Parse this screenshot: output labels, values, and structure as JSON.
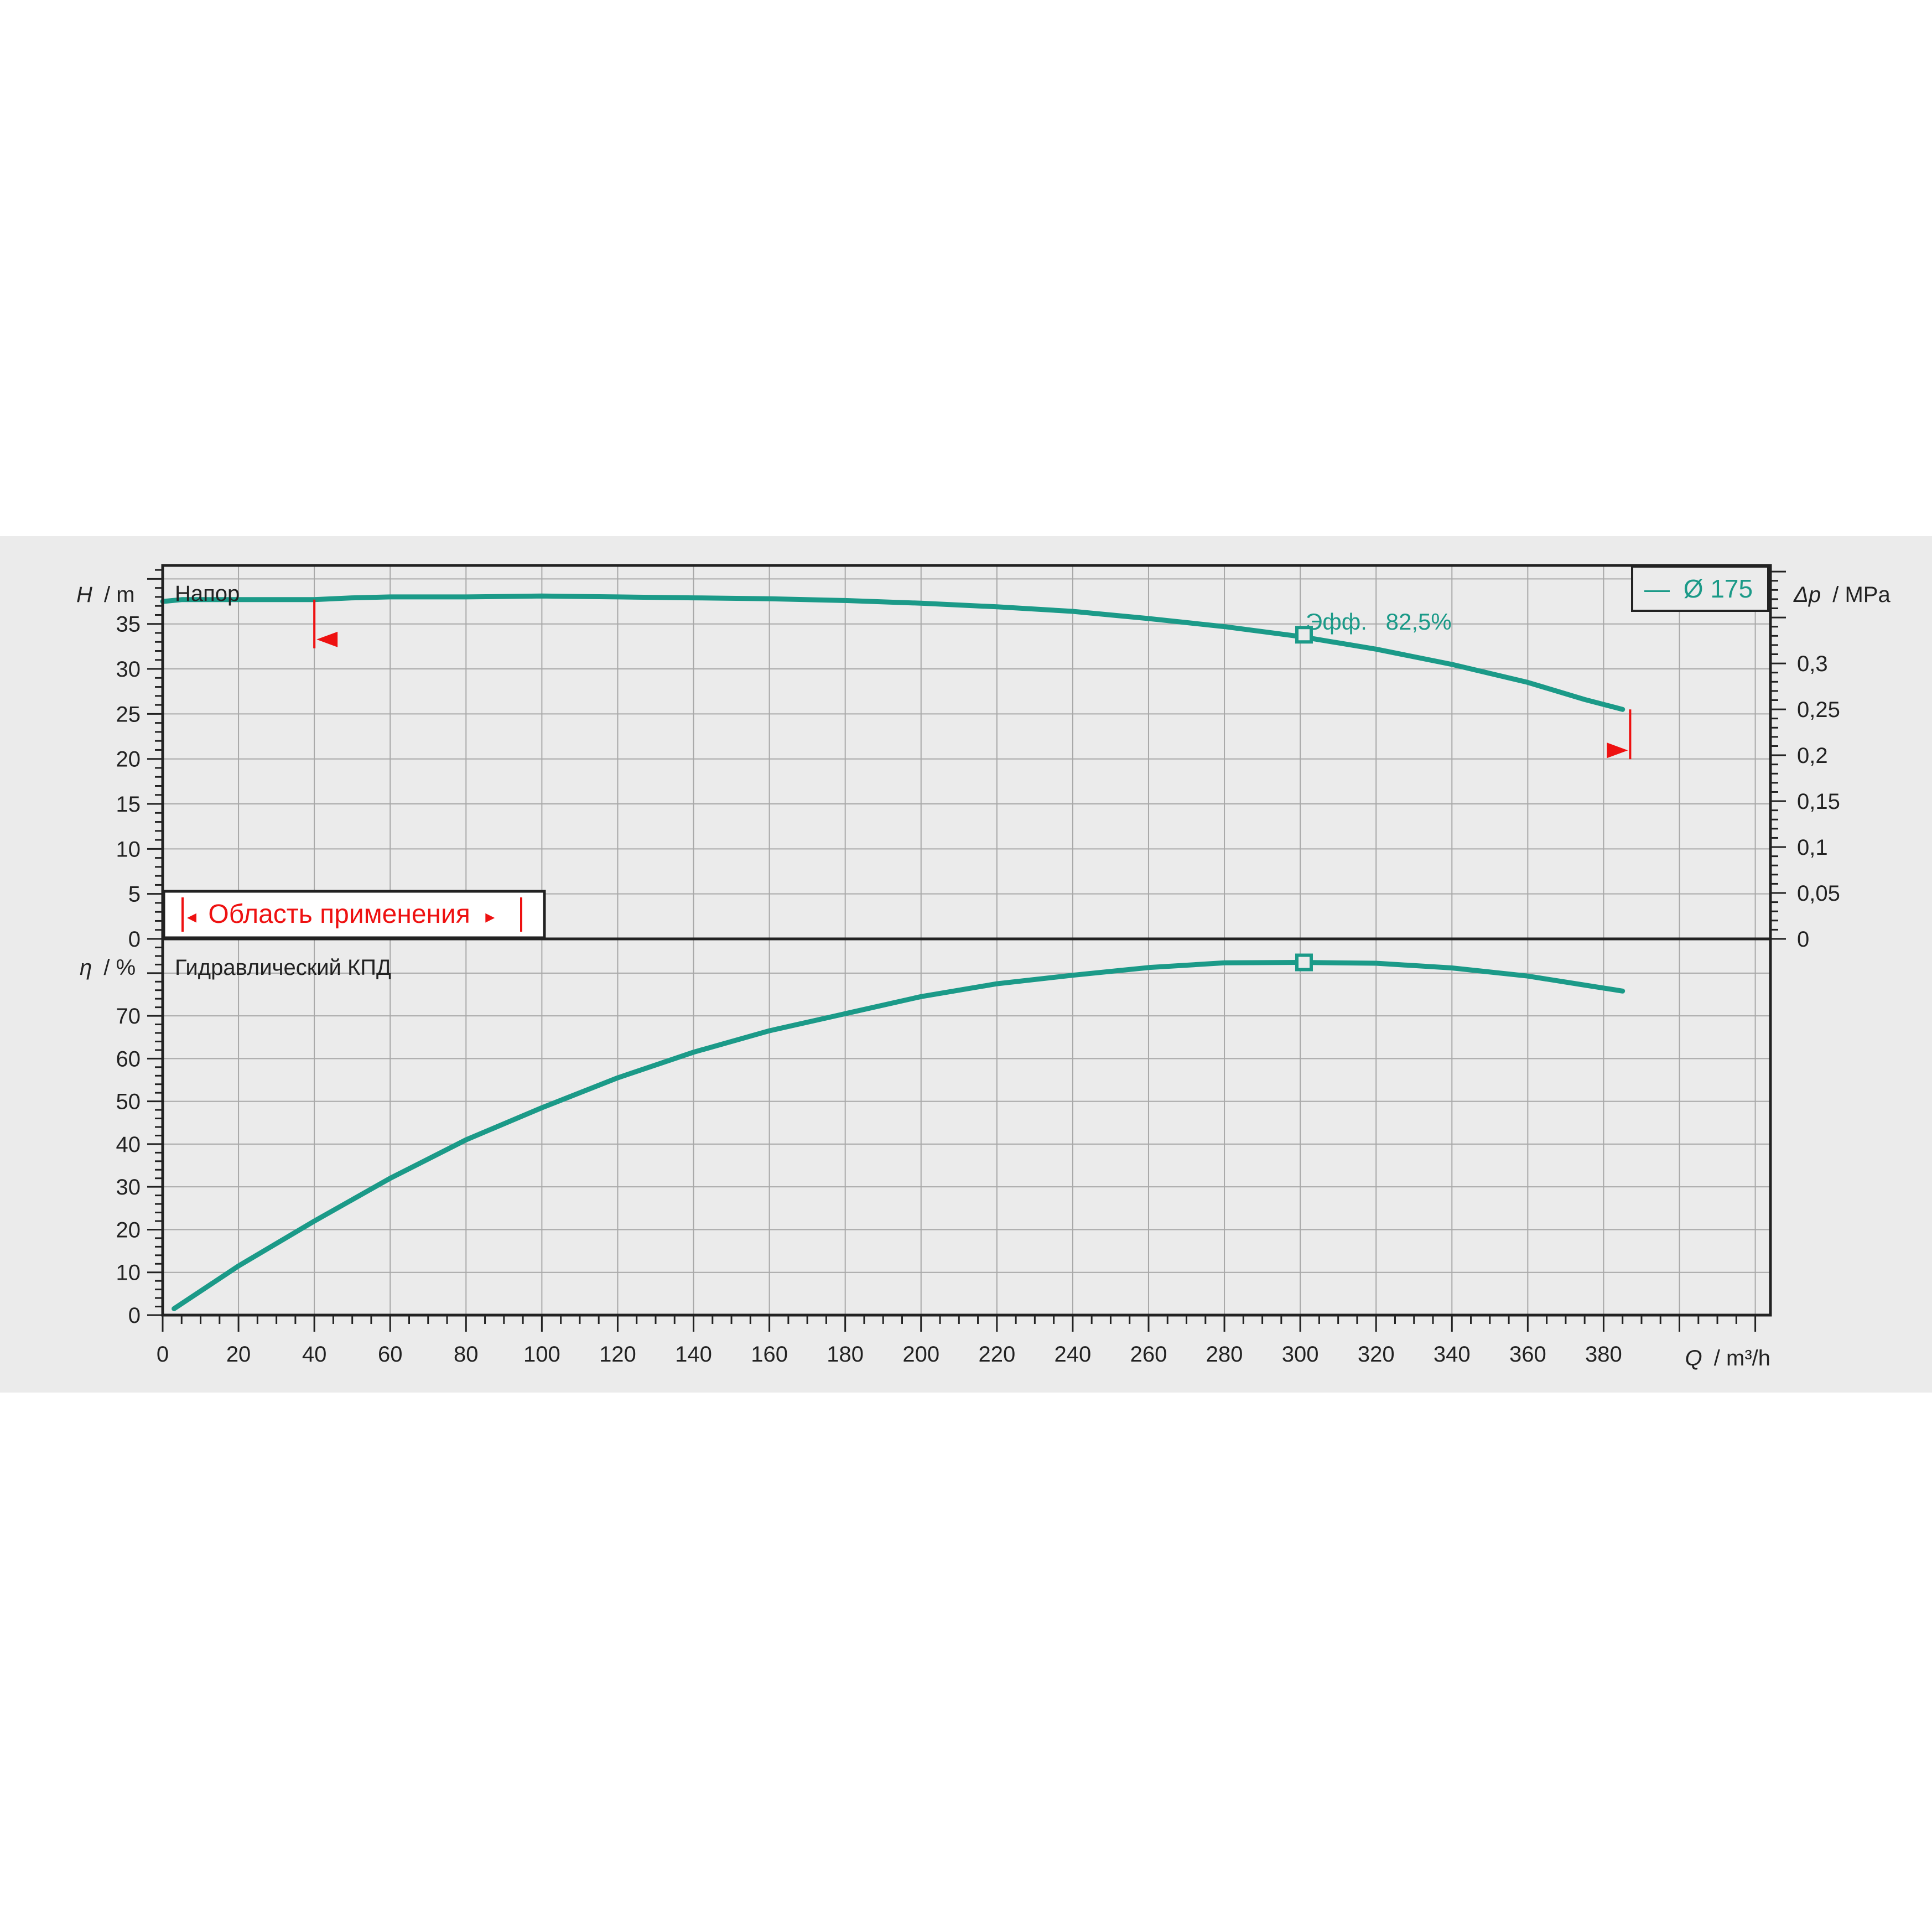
{
  "colors": {
    "curve": "#1b9a88",
    "limit": "#ee1111",
    "grid": "#a8a8a8",
    "frame": "#222222",
    "band": "#ebebeb"
  },
  "legend": {
    "symbol": "—",
    "label": "Ø 175"
  },
  "range_box": {
    "left_arrow": "◂",
    "label": "Область применения",
    "right_arrow": "▸"
  },
  "chart_data": [
    {
      "type": "line",
      "panel": "top",
      "title": "Напор",
      "ylabel_var": "H",
      "ylabel_unit": "/ m",
      "y2label_var": "Δp",
      "y2label_unit": "/ MPa",
      "xlim": [
        0,
        424
      ],
      "ylim": [
        0,
        41.5
      ],
      "y2lim": [
        0,
        0.4067
      ],
      "yticks": [
        "0",
        "5",
        "10",
        "15",
        "20",
        "25",
        "30",
        "35"
      ],
      "y2ticks": [
        "0",
        "0,05",
        "0,1",
        "0,15",
        "0,2",
        "0,25",
        "0,3"
      ],
      "grid": true,
      "series": [
        {
          "name": "Ø 175",
          "x": [
            0,
            5,
            20,
            40,
            50,
            60,
            80,
            100,
            120,
            140,
            160,
            180,
            200,
            220,
            240,
            260,
            280,
            300,
            320,
            340,
            360,
            375,
            385
          ],
          "y": [
            37.5,
            37.7,
            37.7,
            37.7,
            37.9,
            38.0,
            38.0,
            38.1,
            38.0,
            37.9,
            37.8,
            37.6,
            37.3,
            36.9,
            36.4,
            35.6,
            34.7,
            33.6,
            32.2,
            30.5,
            28.5,
            26.6,
            25.5
          ]
        }
      ],
      "bep": {
        "x": 301,
        "y": 33.8,
        "label": "Эфф.",
        "value": "82,5%"
      },
      "application_limits": {
        "min_q": 40,
        "max_q": 387,
        "min_h": 37.7,
        "max_h": 25.5
      }
    },
    {
      "type": "line",
      "panel": "bottom",
      "title": "Гидравлический КПД",
      "ylabel_var": "η",
      "ylabel_unit": "/ %",
      "xlabel_var": "Q",
      "xlabel_unit": "/ m³/h",
      "xlim": [
        0,
        424
      ],
      "ylim": [
        0,
        88
      ],
      "yticks": [
        "0",
        "10",
        "20",
        "30",
        "40",
        "50",
        "60",
        "70"
      ],
      "xticks": [
        "0",
        "20",
        "40",
        "60",
        "80",
        "100",
        "120",
        "140",
        "160",
        "180",
        "200",
        "220",
        "240",
        "260",
        "280",
        "300",
        "320",
        "340",
        "360",
        "380"
      ],
      "grid": true,
      "series": [
        {
          "name": "Ø 175",
          "x": [
            3,
            20,
            40,
            60,
            80,
            100,
            120,
            140,
            160,
            180,
            200,
            220,
            240,
            260,
            280,
            300,
            320,
            340,
            360,
            375,
            385
          ],
          "y": [
            1.5,
            11.5,
            22,
            32,
            41,
            48.5,
            55.5,
            61.5,
            66.5,
            70.5,
            74.5,
            77.5,
            79.5,
            81.3,
            82.4,
            82.5,
            82.3,
            81.2,
            79.3,
            77.2,
            75.8
          ]
        }
      ],
      "bep": {
        "x": 301,
        "y": 82.5
      }
    }
  ]
}
